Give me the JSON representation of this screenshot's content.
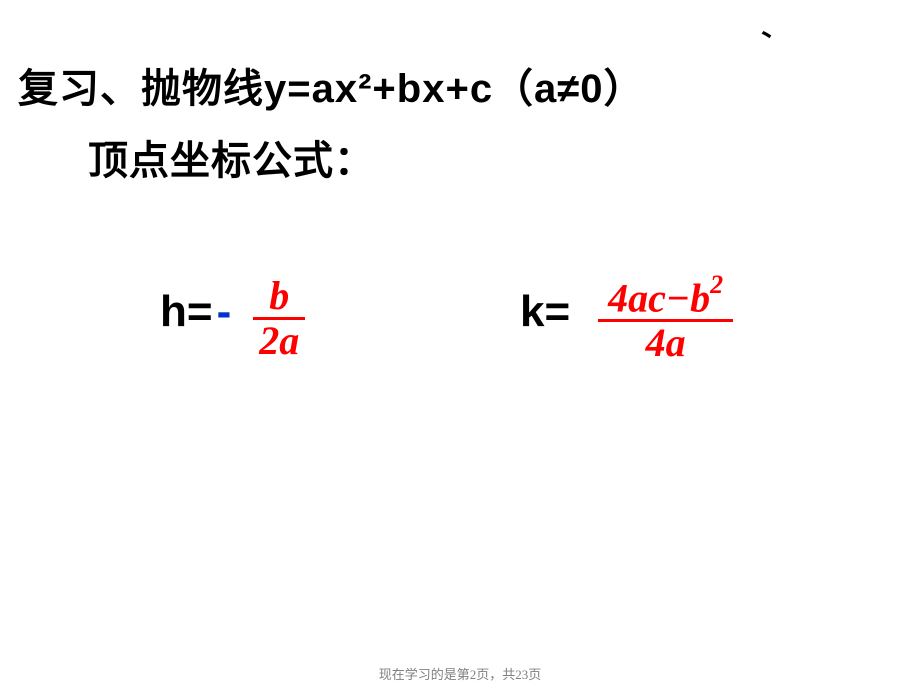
{
  "tick": "、",
  "title": {
    "line1": "复习、抛物线y=ax²+bx+c（a≠0）",
    "line2": "顶点坐标公式："
  },
  "formula": {
    "h_label": "h=",
    "h_sign": "-",
    "h_num": "b",
    "h_den": "2a",
    "k_label": "k=",
    "k_num_prefix": "4ac−b",
    "k_num_exp": "2",
    "k_den": "4a"
  },
  "footer": "现在学习的是第2页，共23页",
  "colors": {
    "text": "#000000",
    "minus": "#0033cc",
    "formula": "#ff0000",
    "footer": "#808080",
    "background": "#ffffff"
  }
}
